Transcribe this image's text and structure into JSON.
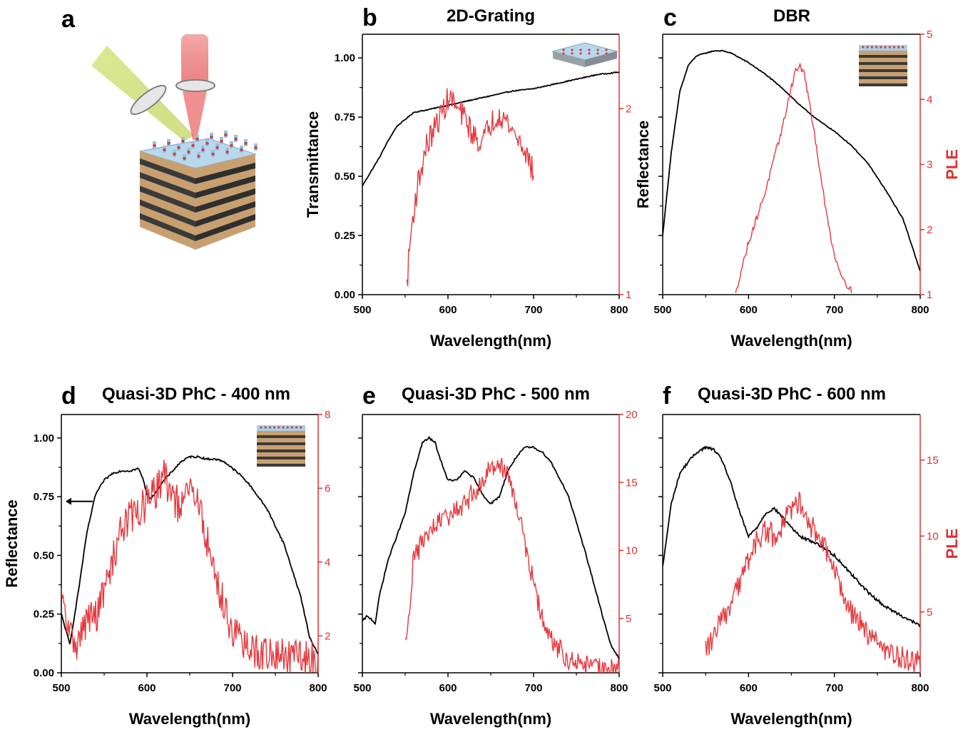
{
  "figure": {
    "panel_a": {
      "letter": "a"
    },
    "colors": {
      "axis": "#000000",
      "black_series": "#000000",
      "red_series": "#e8383d",
      "red_axis": "#e03030"
    }
  },
  "chart_data": [
    {
      "id": "b",
      "letter": "b",
      "type": "line",
      "title": "2D-Grating",
      "xlabel": "Wavelength(nm)",
      "ylabel": "Transmittance",
      "ylabel_right": "",
      "xlim": [
        500,
        800
      ],
      "xticks": [
        "500",
        "600",
        "700",
        "800"
      ],
      "ylim": [
        0,
        1.1
      ],
      "yticks": [
        "0.00",
        "0.25",
        "0.50",
        "0.75",
        "1.00"
      ],
      "ylim_right": [
        1,
        2.4
      ],
      "yticks_right": [
        "1",
        "2"
      ],
      "inset": "grating",
      "series": [
        {
          "axis": "left",
          "color": "black",
          "noise": 0.002,
          "x": [
            500,
            510,
            520,
            530,
            540,
            550,
            560,
            575,
            600,
            625,
            650,
            675,
            700,
            725,
            750,
            775,
            800
          ],
          "y": [
            0.46,
            0.52,
            0.58,
            0.65,
            0.71,
            0.74,
            0.77,
            0.78,
            0.8,
            0.82,
            0.84,
            0.86,
            0.87,
            0.89,
            0.91,
            0.93,
            0.94
          ]
        },
        {
          "axis": "right",
          "color": "red",
          "noise": 0.07,
          "x": [
            552,
            556,
            560,
            565,
            570,
            575,
            580,
            585,
            590,
            595,
            600,
            605,
            610,
            620,
            630,
            640,
            650,
            660,
            670,
            680,
            690,
            700
          ],
          "y": [
            1.05,
            1.3,
            1.45,
            1.6,
            1.7,
            1.8,
            1.85,
            1.9,
            1.95,
            2.0,
            2.05,
            2.05,
            2.0,
            1.95,
            1.85,
            1.82,
            1.92,
            1.98,
            1.92,
            1.85,
            1.78,
            1.65
          ]
        }
      ]
    },
    {
      "id": "c",
      "letter": "c",
      "type": "line",
      "title": "DBR",
      "xlabel": "Wavelength(nm)",
      "ylabel": "Reflectance",
      "ylabel_right": "PLE",
      "xlim": [
        500,
        800
      ],
      "xticks": [
        "500",
        "600",
        "700",
        "800"
      ],
      "ylim": [
        0,
        1.1
      ],
      "yticks": [],
      "ylim_right": [
        1,
        5
      ],
      "yticks_right": [
        "1",
        "2",
        "3",
        "4",
        "5"
      ],
      "inset": "dbr",
      "series": [
        {
          "axis": "left",
          "color": "black",
          "noise": 0.002,
          "x": [
            500,
            510,
            520,
            530,
            540,
            550,
            560,
            570,
            580,
            590,
            600,
            620,
            640,
            660,
            680,
            700,
            720,
            740,
            760,
            780,
            800
          ],
          "y": [
            0.25,
            0.6,
            0.86,
            0.97,
            1.01,
            1.02,
            1.03,
            1.03,
            1.02,
            1.0,
            0.98,
            0.93,
            0.87,
            0.8,
            0.74,
            0.69,
            0.63,
            0.55,
            0.44,
            0.32,
            0.1
          ]
        },
        {
          "axis": "right",
          "color": "red",
          "noise": 0.05,
          "x": [
            585,
            590,
            600,
            610,
            620,
            630,
            640,
            645,
            650,
            655,
            660,
            665,
            670,
            680,
            690,
            700,
            710,
            720
          ],
          "y": [
            1.0,
            1.3,
            1.8,
            2.2,
            2.6,
            3.1,
            3.6,
            3.9,
            4.2,
            4.45,
            4.5,
            4.4,
            4.0,
            3.2,
            2.3,
            1.6,
            1.25,
            1.05
          ]
        }
      ]
    },
    {
      "id": "d",
      "letter": "d",
      "type": "line",
      "title": "Quasi-3D PhC - 400 nm",
      "xlabel": "Wavelength(nm)",
      "ylabel": "Reflectance",
      "ylabel_right": "",
      "xlim": [
        500,
        800
      ],
      "xticks": [
        "500",
        "600",
        "700",
        "800"
      ],
      "ylim": [
        0,
        1.1
      ],
      "yticks": [
        "0.00",
        "0.25",
        "0.50",
        "0.75",
        "1.00"
      ],
      "ylim_right": [
        1,
        8
      ],
      "yticks_right": [
        "2",
        "4",
        "6",
        "8"
      ],
      "inset": "dbr",
      "arrow": true,
      "series": [
        {
          "axis": "left",
          "color": "black",
          "noise": 0.004,
          "x": [
            500,
            510,
            520,
            530,
            540,
            550,
            560,
            570,
            580,
            590,
            595,
            600,
            605,
            610,
            620,
            630,
            640,
            650,
            660,
            670,
            680,
            690,
            700,
            710,
            720,
            740,
            760,
            780,
            790,
            800
          ],
          "y": [
            0.25,
            0.12,
            0.35,
            0.6,
            0.76,
            0.82,
            0.85,
            0.86,
            0.86,
            0.87,
            0.83,
            0.76,
            0.74,
            0.77,
            0.82,
            0.86,
            0.9,
            0.92,
            0.92,
            0.91,
            0.91,
            0.9,
            0.87,
            0.84,
            0.8,
            0.7,
            0.55,
            0.32,
            0.15,
            0.08
          ]
        },
        {
          "axis": "right",
          "color": "red",
          "noise": 0.5,
          "x": [
            500,
            510,
            520,
            530,
            540,
            550,
            560,
            570,
            580,
            590,
            600,
            610,
            615,
            620,
            630,
            640,
            650,
            660,
            670,
            680,
            690,
            700,
            710,
            720,
            740,
            760,
            780,
            800
          ],
          "y": [
            3.0,
            2.0,
            1.8,
            2.5,
            2.5,
            3.2,
            4.0,
            5.0,
            5.2,
            5.4,
            5.6,
            5.9,
            6.2,
            6.3,
            5.8,
            5.4,
            6.0,
            5.6,
            4.6,
            3.6,
            2.8,
            2.2,
            1.8,
            1.6,
            1.5,
            1.45,
            1.4,
            1.35
          ]
        }
      ]
    },
    {
      "id": "e",
      "letter": "e",
      "type": "line",
      "title": "Quasi-3D PhC - 500 nm",
      "xlabel": "Wavelength(nm)",
      "ylabel": "",
      "ylabel_right": "",
      "xlim": [
        500,
        800
      ],
      "xticks": [
        "500",
        "600",
        "700",
        "800"
      ],
      "ylim": [
        0,
        1.1
      ],
      "yticks": [],
      "ylim_right": [
        1,
        20
      ],
      "yticks_right": [
        "5",
        "10",
        "15",
        "20"
      ],
      "inset": "",
      "series": [
        {
          "axis": "left",
          "color": "black",
          "noise": 0.004,
          "x": [
            500,
            505,
            510,
            515,
            520,
            530,
            540,
            550,
            560,
            570,
            578,
            585,
            590,
            600,
            610,
            620,
            630,
            640,
            650,
            660,
            670,
            680,
            690,
            700,
            710,
            720,
            740,
            760,
            780,
            790,
            800
          ],
          "y": [
            0.22,
            0.24,
            0.23,
            0.21,
            0.33,
            0.48,
            0.58,
            0.68,
            0.85,
            0.98,
            1.0,
            0.98,
            0.92,
            0.82,
            0.82,
            0.86,
            0.83,
            0.76,
            0.72,
            0.75,
            0.86,
            0.92,
            0.96,
            0.96,
            0.94,
            0.9,
            0.76,
            0.52,
            0.25,
            0.12,
            0.06
          ]
        },
        {
          "axis": "right",
          "color": "red",
          "noise": 0.8,
          "x": [
            550,
            555,
            560,
            565,
            570,
            580,
            590,
            600,
            620,
            640,
            650,
            660,
            670,
            680,
            690,
            700,
            710,
            720,
            740,
            760,
            780,
            800
          ],
          "y": [
            3.0,
            6.0,
            9.5,
            10.0,
            10.5,
            11.5,
            12.0,
            12.5,
            13.5,
            15.0,
            16.2,
            16.5,
            15.5,
            13.5,
            10.5,
            7.5,
            5.0,
            3.5,
            2.0,
            1.5,
            1.3,
            1.2
          ]
        }
      ]
    },
    {
      "id": "f",
      "letter": "f",
      "type": "line",
      "title": "Quasi-3D PhC - 600 nm",
      "xlabel": "Wavelength(nm)",
      "ylabel": "",
      "ylabel_right": "PLE",
      "xlim": [
        500,
        800
      ],
      "xticks": [
        "500",
        "600",
        "700",
        "800"
      ],
      "ylim": [
        0,
        1.1
      ],
      "yticks": [],
      "ylim_right": [
        1,
        18
      ],
      "yticks_right": [
        "5",
        "10",
        "15"
      ],
      "inset": "",
      "series": [
        {
          "axis": "left",
          "color": "black",
          "noise": 0.006,
          "x": [
            500,
            510,
            520,
            530,
            540,
            550,
            560,
            570,
            580,
            590,
            600,
            610,
            620,
            630,
            640,
            650,
            660,
            680,
            700,
            720,
            740,
            760,
            780,
            800
          ],
          "y": [
            0.45,
            0.72,
            0.85,
            0.9,
            0.94,
            0.96,
            0.95,
            0.9,
            0.8,
            0.68,
            0.58,
            0.62,
            0.68,
            0.7,
            0.66,
            0.62,
            0.58,
            0.55,
            0.5,
            0.42,
            0.34,
            0.28,
            0.24,
            0.2
          ]
        },
        {
          "axis": "right",
          "color": "red",
          "noise": 0.8,
          "x": [
            550,
            560,
            570,
            580,
            590,
            600,
            610,
            620,
            630,
            640,
            650,
            660,
            670,
            680,
            690,
            700,
            720,
            740,
            760,
            780,
            800
          ],
          "y": [
            2.5,
            3.5,
            4.5,
            5.5,
            7.0,
            8.5,
            9.8,
            10.3,
            10.0,
            10.8,
            11.8,
            12.2,
            11.0,
            10.0,
            9.0,
            7.5,
            5.0,
            3.5,
            2.5,
            2.0,
            1.7
          ]
        }
      ]
    }
  ]
}
